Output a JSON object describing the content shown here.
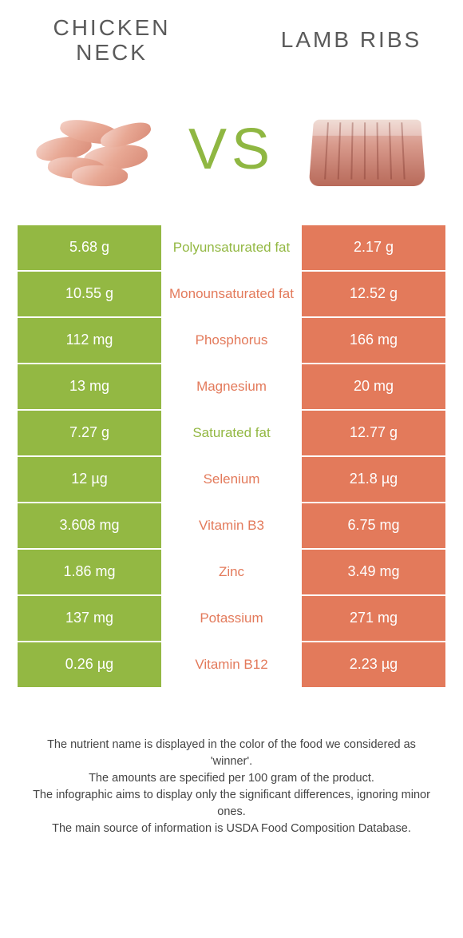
{
  "colors": {
    "left": "#93b843",
    "right": "#e37a5b",
    "vs": "#8fb742",
    "title": "#5a5a5a"
  },
  "foods": {
    "left": {
      "title_line1": "Chicken",
      "title_line2": "neck"
    },
    "right": {
      "title_line1": "Lamb ribs",
      "title_line2": ""
    }
  },
  "vs": "VS",
  "rows": [
    {
      "left": "5.68 g",
      "label": "Polyunsaturated fat",
      "right": "2.17 g",
      "winner": "left"
    },
    {
      "left": "10.55 g",
      "label": "Monounsaturated fat",
      "right": "12.52 g",
      "winner": "right"
    },
    {
      "left": "112 mg",
      "label": "Phosphorus",
      "right": "166 mg",
      "winner": "right"
    },
    {
      "left": "13 mg",
      "label": "Magnesium",
      "right": "20 mg",
      "winner": "right"
    },
    {
      "left": "7.27 g",
      "label": "Saturated fat",
      "right": "12.77 g",
      "winner": "left"
    },
    {
      "left": "12 µg",
      "label": "Selenium",
      "right": "21.8 µg",
      "winner": "right"
    },
    {
      "left": "3.608 mg",
      "label": "Vitamin B3",
      "right": "6.75 mg",
      "winner": "right"
    },
    {
      "left": "1.86 mg",
      "label": "Zinc",
      "right": "3.49 mg",
      "winner": "right"
    },
    {
      "left": "137 mg",
      "label": "Potassium",
      "right": "271 mg",
      "winner": "right"
    },
    {
      "left": "0.26 µg",
      "label": "Vitamin B12",
      "right": "2.23 µg",
      "winner": "right"
    }
  ],
  "footer": {
    "line1": "The nutrient name is displayed in the color of the food we considered as 'winner'.",
    "line2": "The amounts are specified per 100 gram of the product.",
    "line3": "The infographic aims to display only the significant differences, ignoring minor ones.",
    "line4": "The main source of information is USDA Food Composition Database."
  }
}
